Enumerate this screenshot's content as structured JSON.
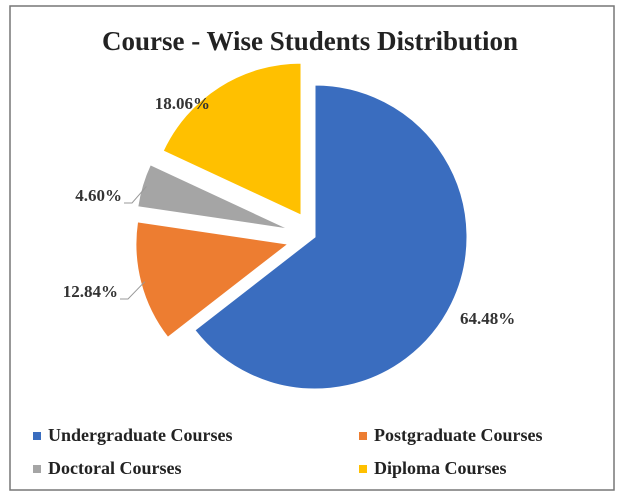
{
  "chart_data": {
    "type": "pie",
    "title": "Course - Wise Students Distribution",
    "categories": [
      "Undergraduate Courses",
      "Postgraduate Courses",
      "Doctoral Courses",
      "Diploma Courses"
    ],
    "values": [
      64.48,
      12.84,
      4.6,
      18.06
    ],
    "value_labels": [
      "64.48%",
      "12.84%",
      "4.60%",
      "18.06%"
    ],
    "colors": [
      "#3a6dbf",
      "#ed7d31",
      "#a5a5a5",
      "#ffc000"
    ],
    "legend": "bottom"
  }
}
